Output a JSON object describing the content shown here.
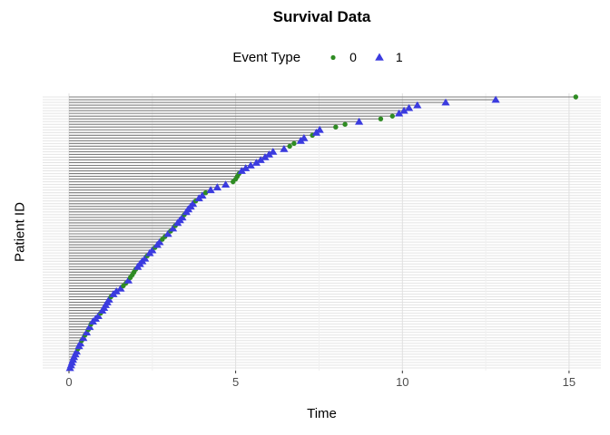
{
  "title": "Survival Data",
  "legend": {
    "title": "Event Type",
    "items": [
      {
        "label": "0",
        "shape": "circle",
        "color": "#2E8B22"
      },
      {
        "label": "1",
        "shape": "triangle",
        "color": "#3B3BDF"
      }
    ]
  },
  "axes": {
    "x_label": "Time",
    "y_label": "Patient ID"
  },
  "chart_data": {
    "type": "scatter",
    "mark": "horizontal segment from time 0 to event time, with event marker at end (patient event plot)",
    "title": "Survival Data",
    "xlabel": "Time",
    "ylabel": "Patient ID",
    "xlim": [
      0,
      15.4
    ],
    "x_ticks": [
      0,
      5,
      10,
      15
    ],
    "x_minor_ticks": [
      2.5,
      7.5,
      12.5
    ],
    "grid": "light gray horizontal line per patient; vertical major+minor gridlines; white background",
    "legend_position": "top",
    "n_patients": 100,
    "order": "patients sorted by time, shortest at bottom, longest at top",
    "segment_color": "#7d7d7d",
    "event_types": [
      {
        "value": "0",
        "shape": "circle",
        "color": "#2E8B22"
      },
      {
        "value": "1",
        "shape": "triangle",
        "color": "#3B3BDF"
      }
    ],
    "times": [
      0.03,
      0.06,
      0.09,
      0.12,
      0.15,
      0.19,
      0.23,
      0.27,
      0.3,
      0.34,
      0.38,
      0.43,
      0.48,
      0.53,
      0.58,
      0.62,
      0.66,
      0.72,
      0.8,
      0.88,
      0.95,
      1.0,
      1.05,
      1.1,
      1.15,
      1.2,
      1.26,
      1.33,
      1.42,
      1.55,
      1.63,
      1.71,
      1.78,
      1.84,
      1.9,
      1.95,
      2.0,
      2.06,
      2.13,
      2.2,
      2.28,
      2.35,
      2.42,
      2.5,
      2.58,
      2.65,
      2.72,
      2.8,
      2.88,
      2.97,
      3.05,
      3.12,
      3.19,
      3.26,
      3.33,
      3.4,
      3.46,
      3.52,
      3.58,
      3.65,
      3.72,
      3.8,
      3.9,
      4.0,
      4.1,
      4.25,
      4.45,
      4.7,
      4.92,
      5.0,
      5.05,
      5.1,
      5.18,
      5.3,
      5.45,
      5.62,
      5.75,
      5.88,
      6.0,
      6.12,
      6.45,
      6.62,
      6.75,
      6.95,
      7.05,
      7.3,
      7.42,
      7.52,
      8.0,
      8.28,
      8.7,
      9.35,
      9.7,
      9.9,
      10.05,
      10.2,
      10.45,
      11.3,
      12.8,
      15.2
    ],
    "events": [
      1,
      1,
      1,
      1,
      1,
      1,
      1,
      0,
      1,
      1,
      0,
      1,
      0,
      1,
      0,
      1,
      0,
      1,
      1,
      1,
      0,
      1,
      1,
      1,
      1,
      1,
      0,
      1,
      1,
      1,
      0,
      0,
      1,
      0,
      0,
      0,
      0,
      1,
      1,
      1,
      1,
      0,
      1,
      1,
      0,
      1,
      1,
      0,
      0,
      1,
      0,
      1,
      0,
      1,
      1,
      1,
      0,
      1,
      1,
      1,
      1,
      0,
      1,
      1,
      0,
      1,
      1,
      1,
      0,
      0,
      0,
      0,
      1,
      1,
      1,
      1,
      1,
      1,
      1,
      1,
      1,
      0,
      0,
      1,
      1,
      0,
      1,
      1,
      0,
      0,
      1,
      0,
      0,
      1,
      1,
      1,
      1,
      1,
      1,
      0
    ]
  },
  "tick_label_color": "#4d4d4d"
}
